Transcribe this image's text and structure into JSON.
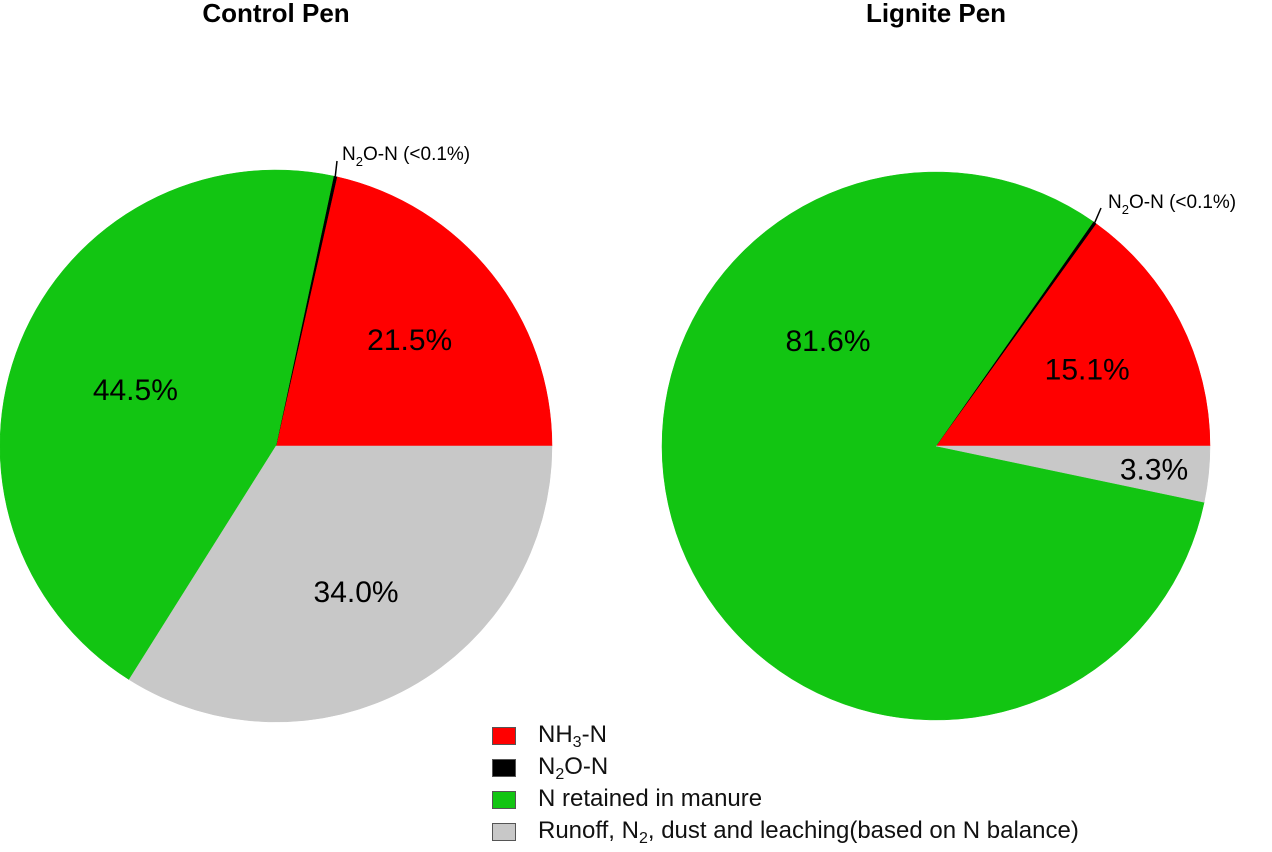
{
  "colors": {
    "nh3": "#ff0000",
    "n2o": "#000000",
    "retained": "#12c512",
    "runoff": "#c8c8c8"
  },
  "chart_data": [
    {
      "type": "pie",
      "title": "Control Pen",
      "slices": [
        {
          "key": "nh3",
          "value": 21.5,
          "label": "21.5%"
        },
        {
          "key": "n2o",
          "value": 0.1,
          "label": "",
          "callout_text": "O-N (<0.1%)"
        },
        {
          "key": "retained",
          "value": 44.5,
          "label": "44.5%"
        },
        {
          "key": "runoff",
          "value": 34.0,
          "label": "34.0%"
        }
      ]
    },
    {
      "type": "pie",
      "title": "Lignite Pen",
      "slices": [
        {
          "key": "nh3",
          "value": 15.1,
          "label": "15.1%"
        },
        {
          "key": "n2o",
          "value": 0.1,
          "label": "",
          "callout_text": "O-N (<0.1%)"
        },
        {
          "key": "retained",
          "value": 81.6,
          "label": "81.6%"
        },
        {
          "key": "runoff",
          "value": 3.3,
          "label": "3.3%"
        }
      ]
    }
  ],
  "legend": [
    {
      "key": "nh3",
      "prefix": "NH",
      "sub": "3",
      "suffix": "-N"
    },
    {
      "key": "n2o",
      "prefix": "N",
      "sub": "2",
      "suffix": "O-N"
    },
    {
      "key": "retained",
      "prefix": "N retained in manure",
      "sub": "",
      "suffix": ""
    },
    {
      "key": "runoff",
      "prefix": "Runoff, N",
      "sub": "2",
      "suffix": ", dust and leaching(based on N balance)"
    }
  ],
  "callout_prefix": "N",
  "callout_sub": "2"
}
